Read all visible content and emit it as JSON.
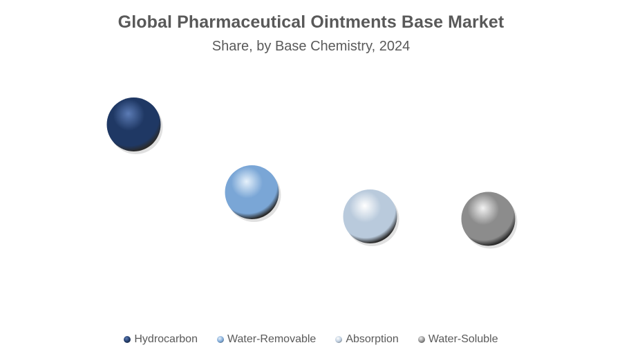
{
  "title": "Global Pharmaceutical Ointments Base Market",
  "subtitle": "Share, by Base Chemistry, 2024",
  "chart_data": {
    "type": "scatter",
    "categories": [
      "Hydrocarbon",
      "Water-Removable",
      "Absorption",
      "Water-Soluble"
    ],
    "values": [
      4,
      2.6,
      2.1,
      2.05
    ],
    "ylim": [
      0,
      5
    ],
    "grid": false,
    "legend_position": "bottom",
    "series": [
      {
        "name": "Hydrocarbon",
        "value": 4,
        "color": "#1f3864",
        "highlight": "#5b7bb5"
      },
      {
        "name": "Water-Removable",
        "value": 2.6,
        "color": "#7aa6d6",
        "highlight": "#e6f1fb"
      },
      {
        "name": "Absorption",
        "value": 2.1,
        "color": "#b9cadc",
        "highlight": "#ffffff"
      },
      {
        "name": "Water-Soluble",
        "value": 2.05,
        "color": "#8c8c8c",
        "highlight": "#f2f2f2"
      }
    ]
  }
}
